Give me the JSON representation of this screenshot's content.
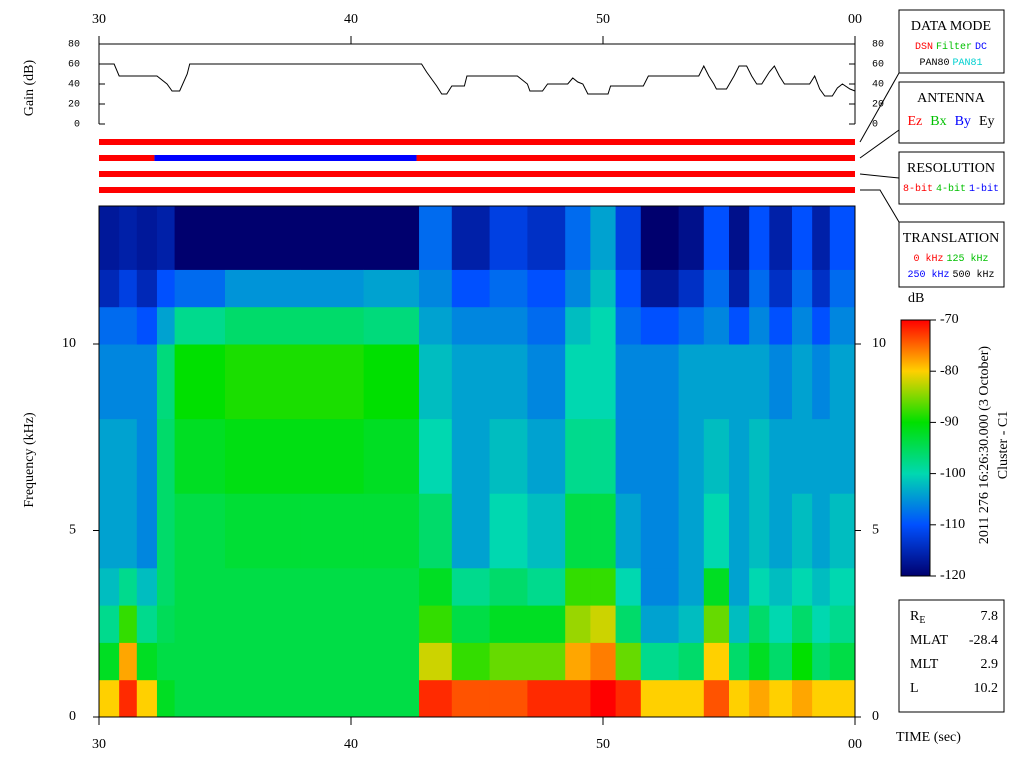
{
  "chart_data": [
    {
      "type": "line",
      "ylabel": "Gain (dB)",
      "color": "#000000",
      "x": [
        30,
        30.6,
        30.8,
        32.3,
        32.7,
        32.9,
        33.2,
        33.5,
        33.6,
        42.8,
        43,
        43.2,
        43.4,
        43.6,
        43.8,
        44,
        44.5,
        44.6,
        46.6,
        47,
        47.1,
        47.6,
        47.8,
        48.6,
        48.8,
        49,
        49.2,
        49.4,
        50.2,
        50.3,
        51.6,
        51.8,
        53.8,
        54,
        54.2,
        54.4,
        54.5,
        54.9,
        55.2,
        55.4,
        55.7,
        55.9,
        56.1,
        56.3,
        56.6,
        56.8,
        57,
        57.2,
        58.2,
        58.4,
        58.6,
        58.8,
        59.1,
        59.3,
        59.5,
        59.8,
        60
      ],
      "values": [
        60,
        60,
        48,
        48,
        40,
        33,
        33,
        50,
        60,
        60,
        52,
        45,
        38,
        30,
        30,
        38,
        38,
        48,
        48,
        40,
        33,
        33,
        40,
        40,
        46,
        42,
        40,
        30,
        30,
        38,
        38,
        48,
        48,
        58,
        48,
        40,
        35,
        35,
        48,
        58,
        58,
        48,
        40,
        40,
        52,
        58,
        48,
        40,
        40,
        48,
        35,
        28,
        28,
        36,
        40,
        35,
        33
      ],
      "xlim": [
        30,
        60
      ],
      "xticks": [
        30,
        40,
        50,
        {
          "value": 60,
          "label": "00"
        }
      ],
      "ylim": [
        0,
        80
      ],
      "yticks": [
        0,
        20,
        40,
        60,
        80
      ]
    },
    {
      "type": "timeline",
      "xlim": [
        30,
        60
      ],
      "rows": [
        {
          "segments": [
            {
              "start": 30,
              "end": 60,
              "color": "#ff0000"
            }
          ]
        },
        {
          "segments": [
            {
              "start": 30,
              "end": 32.2,
              "color": "#ff0000"
            },
            {
              "start": 32.2,
              "end": 42.6,
              "color": "#0000ff"
            },
            {
              "start": 42.6,
              "end": 60,
              "color": "#ff0000"
            }
          ]
        },
        {
          "segments": [
            {
              "start": 30,
              "end": 60,
              "color": "#ff0000"
            }
          ]
        },
        {
          "segments": [
            {
              "start": 30,
              "end": 60,
              "color": "#ff0000"
            }
          ]
        }
      ]
    },
    {
      "type": "heatmap",
      "ylabel": "Frequency (kHz)",
      "xlabel": "TIME (sec)",
      "xbins": [
        30,
        30.8,
        31.5,
        32.3,
        33,
        35,
        38,
        40.5,
        42.7,
        44,
        45.5,
        47,
        48.5,
        49.5,
        50.5,
        51.5,
        53,
        54,
        55,
        55.8,
        56.6,
        57.5,
        58.3,
        59,
        60
      ],
      "ybins": [
        0,
        1,
        2,
        3,
        4,
        6,
        8,
        10,
        11,
        12,
        13.7
      ],
      "values": [
        [
          -80,
          -92,
          -98,
          -102,
          -104,
          -104,
          -106,
          -108,
          -115,
          -117
        ],
        [
          -72,
          -78,
          -88,
          -98,
          -104,
          -104,
          -106,
          -108,
          -112,
          -116
        ],
        [
          -80,
          -92,
          -98,
          -102,
          -106,
          -106,
          -106,
          -110,
          -115,
          -117
        ],
        [
          -92,
          -94,
          -95,
          -96,
          -96,
          -96,
          -97,
          -104,
          -110,
          -116
        ],
        [
          -94,
          -94,
          -94,
          -94,
          -94,
          -92,
          -90,
          -98,
          -108,
          -120
        ],
        [
          -94,
          -94,
          -94,
          -94,
          -93,
          -91,
          -89,
          -96,
          -105,
          -120
        ],
        [
          -94,
          -94,
          -94,
          -94,
          -93,
          -91,
          -89,
          -96,
          -105,
          -120
        ],
        [
          -94,
          -94,
          -94,
          -94,
          -93,
          -92,
          -90,
          -97,
          -104,
          -120
        ],
        [
          -72,
          -82,
          -88,
          -92,
          -96,
          -100,
          -102,
          -104,
          -106,
          -108
        ],
        [
          -74,
          -88,
          -94,
          -98,
          -104,
          -104,
          -104,
          -106,
          -110,
          -116
        ],
        [
          -74,
          -86,
          -92,
          -96,
          -100,
          -102,
          -104,
          -106,
          -108,
          -112
        ],
        [
          -72,
          -86,
          -92,
          -98,
          -102,
          -104,
          -106,
          -108,
          -110,
          -114
        ],
        [
          -72,
          -78,
          -84,
          -88,
          -94,
          -98,
          -100,
          -102,
          -106,
          -108
        ],
        [
          -70,
          -76,
          -82,
          -88,
          -94,
          -98,
          -100,
          -100,
          -102,
          -104
        ],
        [
          -72,
          -86,
          -96,
          -100,
          -104,
          -106,
          -106,
          -108,
          -110,
          -112
        ],
        [
          -80,
          -98,
          -104,
          -106,
          -106,
          -106,
          -106,
          -110,
          -117,
          -120
        ],
        [
          -80,
          -96,
          -102,
          -104,
          -104,
          -104,
          -104,
          -108,
          -114,
          -118
        ],
        [
          -74,
          -80,
          -86,
          -92,
          -100,
          -102,
          -104,
          -106,
          -108,
          -110
        ],
        [
          -80,
          -96,
          -102,
          -104,
          -104,
          -104,
          -104,
          -110,
          -116,
          -118
        ],
        [
          -78,
          -92,
          -96,
          -100,
          -102,
          -102,
          -104,
          -106,
          -108,
          -110
        ],
        [
          -80,
          -96,
          -100,
          -102,
          -104,
          -104,
          -106,
          -110,
          -114,
          -116
        ],
        [
          -78,
          -90,
          -96,
          -100,
          -102,
          -104,
          -104,
          -106,
          -108,
          -110
        ],
        [
          -80,
          -96,
          -100,
          -102,
          -104,
          -104,
          -106,
          -110,
          -114,
          -116
        ],
        [
          -80,
          -94,
          -98,
          -100,
          -102,
          -104,
          -104,
          -106,
          -108,
          -110
        ]
      ],
      "xlim": [
        30,
        60
      ],
      "xticks": [
        30,
        40,
        50,
        {
          "value": 60,
          "label": "00"
        }
      ],
      "ylim": [
        0,
        13.7
      ],
      "yticks": [
        0,
        5,
        10
      ]
    },
    {
      "type": "colorbar",
      "label": "dB",
      "lim": [
        -120,
        -70
      ],
      "ticks": [
        -70,
        -80,
        -90,
        -100,
        -110,
        -120
      ],
      "colors": [
        "#00006e",
        "#0050ff",
        "#00d8b0",
        "#00e000",
        "#ffd000",
        "#ff0000"
      ]
    }
  ],
  "panels": [
    {
      "title": "DATA MODE",
      "rows": [
        [
          {
            "text": "DSN",
            "color": "#ff0000"
          },
          {
            "text": "Filter",
            "color": "#00c000"
          },
          {
            "text": "DC",
            "color": "#0000ff"
          }
        ],
        [
          {
            "text": "PAN80",
            "color": "#000000"
          },
          {
            "text": "PAN81",
            "color": "#00d0d0"
          }
        ]
      ]
    },
    {
      "title": "ANTENNA",
      "rows": [
        [
          {
            "text": "Ez",
            "color": "#ff0000"
          },
          {
            "text": "Bx",
            "color": "#00c000"
          },
          {
            "text": "By",
            "color": "#0000ff"
          },
          {
            "text": "Ey",
            "color": "#000000"
          }
        ]
      ]
    },
    {
      "title": "RESOLUTION",
      "rows": [
        [
          {
            "text": "8-bit",
            "color": "#ff0000"
          },
          {
            "text": "4-bit",
            "color": "#00c000"
          },
          {
            "text": "1-bit",
            "color": "#0000ff"
          }
        ]
      ]
    },
    {
      "title": "TRANSLATION",
      "rows": [
        [
          {
            "text": "0 kHz",
            "color": "#ff0000"
          },
          {
            "text": "125 kHz",
            "color": "#00c000"
          }
        ],
        [
          {
            "text": "250 kHz",
            "color": "#0000ff"
          },
          {
            "text": "500 kHz",
            "color": "#000000"
          }
        ]
      ]
    }
  ],
  "annotations": {
    "date": "2011 276 16:26:30.000 (3 October)",
    "spacecraft": "Cluster - C1"
  },
  "info": [
    {
      "label": "R",
      "sub": "E",
      "value": 7.8
    },
    {
      "label": "MLAT",
      "value": -28.4
    },
    {
      "label": "MLT",
      "value": 2.9
    },
    {
      "label": "L",
      "value": 10.2
    }
  ]
}
